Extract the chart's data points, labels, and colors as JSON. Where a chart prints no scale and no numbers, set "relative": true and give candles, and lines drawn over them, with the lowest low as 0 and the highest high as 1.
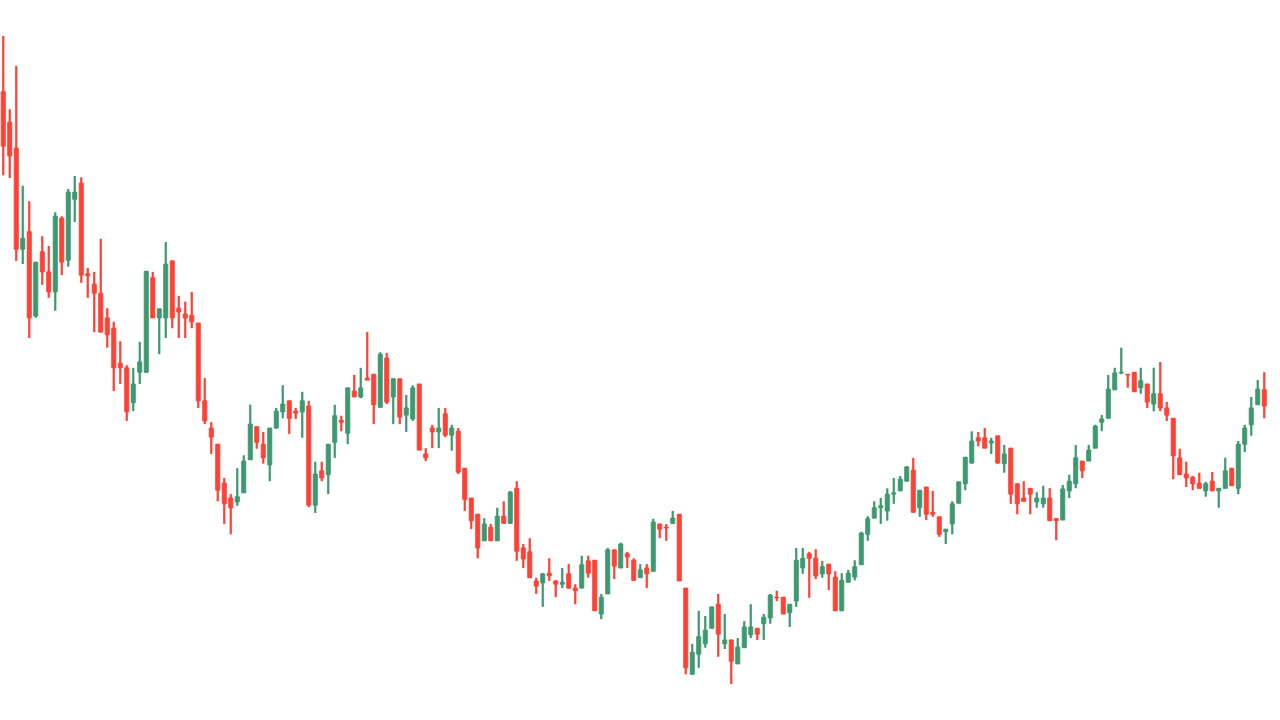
{
  "chart_data": {
    "type": "candlestick",
    "relative": true,
    "colors": [
      "#ff4136",
      "#ff4136",
      "#ff4136",
      "#3d9970",
      "#ff4136",
      "#3d9970",
      "#ff4136",
      "#ff4136",
      "#3d9970",
      "#ff4136",
      "#3d9970",
      "#3d9970",
      "#ff4136",
      "#ff4136",
      "#ff4136",
      "#ff4136",
      "#ff4136",
      "#ff4136",
      "#ff4136",
      "#ff4136",
      "#3d9970",
      "#3d9970",
      "#3d9970",
      "#ff4136",
      "#3d9970",
      "#3d9970",
      "#ff4136",
      "#ff4136",
      "#ff4136",
      "#ff4136",
      "#ff4136",
      "#ff4136",
      "#ff4136",
      "#ff4136",
      "#ff4136",
      "#ff4136",
      "#3d9970",
      "#3d9970",
      "#3d9970",
      "#ff4136",
      "#ff4136",
      "#3d9970",
      "#3d9970",
      "#3d9970",
      "#ff4136",
      "#ff4136",
      "#3d9970",
      "#ff4136",
      "#3d9970",
      "#ff4136",
      "#3d9970",
      "#3d9970",
      "#ff4136",
      "#3d9970",
      "#ff4136",
      "#3d9970",
      "#ff4136",
      "#ff4136",
      "#3d9970",
      "#ff4136",
      "#3d9970",
      "#ff4136",
      "#3d9970",
      "#3d9970",
      "#ff4136",
      "#ff4136",
      "#ff4136",
      "#3d9970",
      "#ff4136",
      "#3d9970",
      "#ff4136",
      "#ff4136",
      "#ff4136",
      "#ff4136",
      "#3d9970",
      "#ff4136",
      "#3d9970",
      "#ff4136",
      "#3d9970",
      "#ff4136",
      "#ff4136",
      "#ff4136",
      "#ff4136",
      "#3d9970",
      "#ff4136",
      "#ff4136",
      "#3d9970",
      "#ff4136",
      "#ff4136",
      "#3d9970",
      "#ff4136",
      "#ff4136",
      "#3d9970",
      "#3d9970",
      "#ff4136",
      "#3d9970",
      "#ff4136",
      "#ff4136",
      "#3d9970",
      "#ff4136",
      "#3d9970",
      "#ff4136",
      "#ff4136",
      "#3d9970",
      "#ff4136",
      "#ff4136",
      "#3d9970",
      "#3d9970",
      "#3d9970",
      "#3d9970",
      "#ff4136",
      "#3d9970",
      "#ff4136",
      "#3d9970",
      "#3d9970",
      "#3d9970",
      "#ff4136",
      "#3d9970",
      "#3d9970",
      "#ff4136",
      "#ff4136",
      "#3d9970",
      "#3d9970",
      "#3d9970",
      "#ff4136",
      "#ff4136",
      "#3d9970",
      "#ff4136",
      "#ff4136",
      "#3d9970",
      "#3d9970",
      "#3d9970",
      "#3d9970",
      "#3d9970",
      "#3d9970",
      "#3d9970",
      "#3d9970",
      "#3d9970",
      "#3d9970",
      "#3d9970",
      "#ff4136",
      "#3d9970",
      "#ff4136",
      "#ff4136",
      "#ff4136",
      "#3d9970",
      "#3d9970",
      "#3d9970",
      "#3d9970",
      "#3d9970",
      "#ff4136",
      "#ff4136",
      "#3d9970",
      "#ff4136",
      "#3d9970",
      "#ff4136",
      "#ff4136",
      "#ff4136",
      "#ff4136",
      "#3d9970",
      "#3d9970",
      "#ff4136",
      "#ff4136",
      "#3d9970",
      "#3d9970",
      "#3d9970",
      "#ff4136",
      "#3d9970",
      "#3d9970",
      "#3d9970",
      "#3d9970",
      "#3d9970",
      "#3d9970",
      "#ff4136",
      "#ff4136",
      "#3d9970",
      "#ff4136",
      "#3d9970",
      "#ff4136",
      "#ff4136",
      "#ff4136",
      "#ff4136",
      "#ff4136",
      "#ff4136",
      "#ff4136",
      "#3d9970",
      "#ff4136",
      "#3d9970",
      "#3d9970",
      "#ff4136",
      "#3d9970",
      "#3d9970",
      "#3d9970",
      "#3d9970",
      "#ff4136"
    ],
    "categories": [
      null,
      null,
      null,
      null,
      null,
      null,
      null,
      null,
      null,
      null,
      null,
      null,
      null,
      null,
      null,
      null,
      null,
      null,
      null,
      null,
      null,
      null,
      null,
      null,
      null,
      null,
      null,
      null,
      null,
      null,
      null,
      null,
      null,
      null,
      null,
      null,
      null,
      null,
      null,
      null,
      null,
      null,
      null,
      null,
      null,
      null,
      null,
      null,
      null,
      null,
      null,
      null,
      null,
      null,
      null,
      null,
      null,
      null,
      null,
      null,
      null,
      null,
      null,
      null,
      null,
      null,
      null,
      null,
      null,
      null,
      null,
      null,
      null,
      null,
      null,
      null,
      null,
      null,
      null,
      null,
      null,
      null,
      null,
      null,
      null,
      null,
      null,
      null,
      null,
      null,
      null,
      null,
      null,
      null,
      null,
      null,
      null,
      null,
      null,
      null,
      null,
      null,
      null,
      null,
      null,
      null,
      null,
      null,
      null,
      null,
      null,
      null,
      null,
      null,
      null,
      null,
      null,
      null,
      null,
      null,
      null,
      null,
      null,
      null,
      null,
      null,
      null,
      null,
      null,
      null,
      null,
      null,
      null,
      null,
      null,
      null,
      null,
      null,
      null,
      null,
      null,
      null,
      null,
      null,
      null,
      null,
      null,
      null,
      null,
      null,
      null,
      null,
      null,
      null,
      null,
      null,
      null,
      null,
      null,
      null,
      null,
      null,
      null,
      null,
      null,
      null,
      null,
      null,
      null,
      null,
      null,
      null,
      null,
      null,
      null,
      null,
      null,
      null,
      null,
      null,
      null,
      null,
      null,
      null,
      null,
      null,
      null,
      null,
      null,
      null,
      null,
      null,
      null,
      null,
      null
    ],
    "ohlc": [
      [
        0.914,
        1,
        0.785,
        0.83
      ],
      [
        0.867,
        0.887,
        0.781,
        0.815
      ],
      [
        0.827,
        0.954,
        0.653,
        0.671
      ],
      [
        0.671,
        0.769,
        0.648,
        0.688
      ],
      [
        0.698,
        0.745,
        0.534,
        0.565
      ],
      [
        0.568,
        0.651,
        0.565,
        0.651
      ],
      [
        0.667,
        0.691,
        0.616,
        0.636
      ],
      [
        0.636,
        0.676,
        0.596,
        0.605
      ],
      [
        0.605,
        0.728,
        0.576,
        0.722
      ],
      [
        0.719,
        0.722,
        0.631,
        0.651
      ],
      [
        0.654,
        0.764,
        0.644,
        0.759
      ],
      [
        0.748,
        0.784,
        0.713,
        0.759
      ],
      [
        0.773,
        0.782,
        0.619,
        0.631
      ],
      [
        0.633,
        0.642,
        0.596,
        0.63
      ],
      [
        0.617,
        0.636,
        0.543,
        0.603
      ],
      [
        0.603,
        0.687,
        0.543,
        0.543
      ],
      [
        0.565,
        0.58,
        0.519,
        0.539
      ],
      [
        0.549,
        0.559,
        0.452,
        0.488
      ],
      [
        0.495,
        0.529,
        0.463,
        0.488
      ],
      [
        0.488,
        0.492,
        0.406,
        0.42
      ],
      [
        0.434,
        0.488,
        0.421,
        0.463
      ],
      [
        0.481,
        0.528,
        0.463,
        0.497
      ],
      [
        0.481,
        0.637,
        0.481,
        0.637
      ],
      [
        0.627,
        0.636,
        0.565,
        0.565
      ],
      [
        0.565,
        0.579,
        0.509,
        0.579
      ],
      [
        0.565,
        0.682,
        0.534,
        0.648
      ],
      [
        0.653,
        0.653,
        0.549,
        0.565
      ],
      [
        0.58,
        0.599,
        0.534,
        0.574
      ],
      [
        0.571,
        0.59,
        0.534,
        0.565
      ],
      [
        0.569,
        0.605,
        0.549,
        0.559
      ],
      [
        0.557,
        0.557,
        0.426,
        0.437
      ],
      [
        0.437,
        0.472,
        0.401,
        0.406
      ],
      [
        0.395,
        0.404,
        0.355,
        0.381
      ],
      [
        0.37,
        0.37,
        0.282,
        0.299
      ],
      [
        0.31,
        0.318,
        0.247,
        0.278
      ],
      [
        0.287,
        0.293,
        0.231,
        0.272
      ],
      [
        0.281,
        0.333,
        0.275,
        0.289
      ],
      [
        0.295,
        0.353,
        0.295,
        0.344
      ],
      [
        0.346,
        0.431,
        0.346,
        0.401
      ],
      [
        0.397,
        0.398,
        0.363,
        0.373
      ],
      [
        0.37,
        0.389,
        0.34,
        0.349
      ],
      [
        0.338,
        0.395,
        0.313,
        0.395
      ],
      [
        0.395,
        0.426,
        0.394,
        0.421
      ],
      [
        0.42,
        0.461,
        0.41,
        0.432
      ],
      [
        0.437,
        0.437,
        0.386,
        0.41
      ],
      [
        0.421,
        0.426,
        0.409,
        0.418
      ],
      [
        0.42,
        0.451,
        0.38,
        0.437
      ],
      [
        0.429,
        0.437,
        0.273,
        0.276
      ],
      [
        0.276,
        0.343,
        0.264,
        0.324
      ],
      [
        0.329,
        0.343,
        0.313,
        0.318
      ],
      [
        0.323,
        0.37,
        0.293,
        0.37
      ],
      [
        0.373,
        0.431,
        0.349,
        0.414
      ],
      [
        0.407,
        0.414,
        0.39,
        0.404
      ],
      [
        0.387,
        0.457,
        0.37,
        0.457
      ],
      [
        0.452,
        0.477,
        0.443,
        0.443
      ],
      [
        0.443,
        0.488,
        0.441,
        0.457
      ],
      [
        0.472,
        0.543,
        0.469,
        0.469
      ],
      [
        0.478,
        0.478,
        0.401,
        0.431
      ],
      [
        0.427,
        0.512,
        0.427,
        0.509
      ],
      [
        0.503,
        0.511,
        0.432,
        0.435
      ],
      [
        0.443,
        0.472,
        0.401,
        0.471
      ],
      [
        0.471,
        0.471,
        0.401,
        0.412
      ],
      [
        0.415,
        0.446,
        0.389,
        0.426
      ],
      [
        0.409,
        0.461,
        0.406,
        0.457
      ],
      [
        0.463,
        0.463,
        0.361,
        0.361
      ],
      [
        0.355,
        0.364,
        0.344,
        0.349
      ],
      [
        0.395,
        0.4,
        0.364,
        0.389
      ],
      [
        0.389,
        0.426,
        0.364,
        0.395
      ],
      [
        0.417,
        0.426,
        0.381,
        0.384
      ],
      [
        0.384,
        0.4,
        0.36,
        0.395
      ],
      [
        0.39,
        0.395,
        0.324,
        0.327
      ],
      [
        0.333,
        0.333,
        0.267,
        0.285
      ],
      [
        0.287,
        0.287,
        0.239,
        0.252
      ],
      [
        0.262,
        0.262,
        0.194,
        0.21
      ],
      [
        0.221,
        0.256,
        0.221,
        0.247
      ],
      [
        0.242,
        0.247,
        0.221,
        0.221
      ],
      [
        0.221,
        0.272,
        0.221,
        0.259
      ],
      [
        0.259,
        0.282,
        0.247,
        0.248
      ],
      [
        0.248,
        0.298,
        0.247,
        0.296
      ],
      [
        0.302,
        0.313,
        0.19,
        0.205
      ],
      [
        0.21,
        0.216,
        0.179,
        0.193
      ],
      [
        0.204,
        0.225,
        0.164,
        0.164
      ],
      [
        0.159,
        0.164,
        0.139,
        0.151
      ],
      [
        0.156,
        0.171,
        0.119,
        0.17
      ],
      [
        0.171,
        0.194,
        0.159,
        0.167
      ],
      [
        0.159,
        0.16,
        0.134,
        0.154
      ],
      [
        0.154,
        0.179,
        0.148,
        0.157
      ],
      [
        0.17,
        0.185,
        0.147,
        0.148
      ],
      [
        0.148,
        0.154,
        0.123,
        0.144
      ],
      [
        0.148,
        0.198,
        0.148,
        0.184
      ],
      [
        0.19,
        0.198,
        0.164,
        0.171
      ],
      [
        0.191,
        0.191,
        0.113,
        0.113
      ],
      [
        0.108,
        0.139,
        0.1,
        0.134
      ],
      [
        0.139,
        0.21,
        0.139,
        0.207
      ],
      [
        0.207,
        0.207,
        0.162,
        0.182
      ],
      [
        0.179,
        0.218,
        0.179,
        0.216
      ],
      [
        0.201,
        0.204,
        0.179,
        0.196
      ],
      [
        0.191,
        0.194,
        0.159,
        0.16
      ],
      [
        0.164,
        0.185,
        0.164,
        0.176
      ],
      [
        0.179,
        0.185,
        0.148,
        0.17
      ],
      [
        0.174,
        0.255,
        0.174,
        0.25
      ],
      [
        0.247,
        0.247,
        0.225,
        0.239
      ],
      [
        0.242,
        0.247,
        0.221,
        0.241
      ],
      [
        0.248,
        0.267,
        0.247,
        0.256
      ],
      [
        0.262,
        0.262,
        0.159,
        0.159
      ],
      [
        0.148,
        0.148,
        0.015,
        0.025
      ],
      [
        0.015,
        0.062,
        0.015,
        0.049
      ],
      [
        0.046,
        0.113,
        0.025,
        0.073
      ],
      [
        0.062,
        0.105,
        0.056,
        0.083
      ],
      [
        0.086,
        0.119,
        0.085,
        0.119
      ],
      [
        0.123,
        0.139,
        0.042,
        0.077
      ],
      [
        0.062,
        0.108,
        0.054,
        0.068
      ],
      [
        0.068,
        0.068,
        0,
        0.035
      ],
      [
        0.031,
        0.071,
        0.031,
        0.057
      ],
      [
        0.056,
        0.097,
        0.056,
        0.088
      ],
      [
        0.076,
        0.123,
        0.071,
        0.088
      ],
      [
        0.086,
        0.086,
        0.068,
        0.077
      ],
      [
        0.093,
        0.108,
        0.068,
        0.103
      ],
      [
        0.102,
        0.139,
        0.093,
        0.137
      ],
      [
        0.134,
        0.144,
        0.128,
        0.133
      ],
      [
        0.134,
        0.134,
        0.108,
        0.108
      ],
      [
        0.11,
        0.123,
        0.088,
        0.123
      ],
      [
        0.128,
        0.21,
        0.119,
        0.191
      ],
      [
        0.179,
        0.21,
        0.17,
        0.194
      ],
      [
        0.201,
        0.204,
        0.133,
        0.194
      ],
      [
        0.194,
        0.208,
        0.162,
        0.167
      ],
      [
        0.17,
        0.19,
        0.164,
        0.181
      ],
      [
        0.185,
        0.185,
        0.145,
        0.17
      ],
      [
        0.165,
        0.174,
        0.113,
        0.113
      ],
      [
        0.113,
        0.171,
        0.113,
        0.16
      ],
      [
        0.157,
        0.176,
        0.157,
        0.171
      ],
      [
        0.165,
        0.191,
        0.16,
        0.181
      ],
      [
        0.184,
        0.235,
        0.184,
        0.233
      ],
      [
        0.231,
        0.259,
        0.221,
        0.255
      ],
      [
        0.256,
        0.282,
        0.256,
        0.272
      ],
      [
        0.272,
        0.287,
        0.247,
        0.275
      ],
      [
        0.267,
        0.302,
        0.252,
        0.293
      ],
      [
        0.293,
        0.318,
        0.278,
        0.295
      ],
      [
        0.298,
        0.321,
        0.298,
        0.316
      ],
      [
        0.313,
        0.336,
        0.313,
        0.335
      ],
      [
        0.33,
        0.349,
        0.265,
        0.265
      ],
      [
        0.272,
        0.299,
        0.258,
        0.299
      ],
      [
        0.304,
        0.304,
        0.253,
        0.262
      ],
      [
        0.265,
        0.298,
        0.258,
        0.262
      ],
      [
        0.258,
        0.258,
        0.227,
        0.231
      ],
      [
        0.235,
        0.239,
        0.216,
        0.239
      ],
      [
        0.247,
        0.282,
        0.231,
        0.278
      ],
      [
        0.279,
        0.312,
        0.279,
        0.312
      ],
      [
        0.309,
        0.35,
        0.299,
        0.35
      ],
      [
        0.341,
        0.39,
        0.34,
        0.375
      ],
      [
        0.38,
        0.389,
        0.367,
        0.375
      ],
      [
        0.38,
        0.395,
        0.364,
        0.364
      ],
      [
        0.372,
        0.38,
        0.355,
        0.375
      ],
      [
        0.383,
        0.383,
        0.34,
        0.341
      ],
      [
        0.34,
        0.369,
        0.326,
        0.355
      ],
      [
        0.364,
        0.364,
        0.278,
        0.293
      ],
      [
        0.309,
        0.309,
        0.262,
        0.278
      ],
      [
        0.287,
        0.313,
        0.282,
        0.282
      ],
      [
        0.302,
        0.302,
        0.262,
        0.293
      ],
      [
        0.281,
        0.296,
        0.272,
        0.287
      ],
      [
        0.278,
        0.306,
        0.272,
        0.287
      ],
      [
        0.287,
        0.302,
        0.252,
        0.252
      ],
      [
        0.255,
        0.256,
        0.222,
        0.252
      ],
      [
        0.253,
        0.307,
        0.253,
        0.301
      ],
      [
        0.298,
        0.323,
        0.287,
        0.313
      ],
      [
        0.309,
        0.369,
        0.302,
        0.349
      ],
      [
        0.344,
        0.344,
        0.318,
        0.329
      ],
      [
        0.344,
        0.369,
        0.344,
        0.361
      ],
      [
        0.364,
        0.4,
        0.364,
        0.398
      ],
      [
        0.404,
        0.415,
        0.39,
        0.409
      ],
      [
        0.41,
        0.477,
        0.41,
        0.455
      ],
      [
        0.454,
        0.488,
        0.454,
        0.48
      ],
      [
        0.48,
        0.519,
        0.478,
        0.481
      ],
      [
        0.478,
        0.478,
        0.457,
        0.477
      ],
      [
        0.481,
        0.481,
        0.451,
        0.451
      ],
      [
        0.457,
        0.488,
        0.448,
        0.468
      ],
      [
        0.463,
        0.463,
        0.426,
        0.435
      ],
      [
        0.432,
        0.488,
        0.421,
        0.448
      ],
      [
        0.448,
        0.497,
        0.421,
        0.426
      ],
      [
        0.426,
        0.435,
        0.406,
        0.415
      ],
      [
        0.41,
        0.41,
        0.316,
        0.352
      ],
      [
        0.349,
        0.363,
        0.323,
        0.323
      ],
      [
        0.324,
        0.343,
        0.304,
        0.318
      ],
      [
        0.319,
        0.321,
        0.299,
        0.309
      ],
      [
        0.31,
        0.326,
        0.302,
        0.302
      ],
      [
        0.298,
        0.312,
        0.289,
        0.309
      ],
      [
        0.313,
        0.327,
        0.298,
        0.298
      ],
      [
        0.298,
        0.302,
        0.272,
        0.302
      ],
      [
        0.302,
        0.349,
        0.302,
        0.329
      ],
      [
        0.333,
        0.333,
        0.306,
        0.306
      ],
      [
        0.302,
        0.375,
        0.293,
        0.37
      ],
      [
        0.37,
        0.4,
        0.358,
        0.395
      ],
      [
        0.4,
        0.443,
        0.383,
        0.426
      ],
      [
        0.431,
        0.469,
        0.431,
        0.455
      ],
      [
        0.454,
        0.481,
        0.41,
        0.429
      ]
    ]
  }
}
